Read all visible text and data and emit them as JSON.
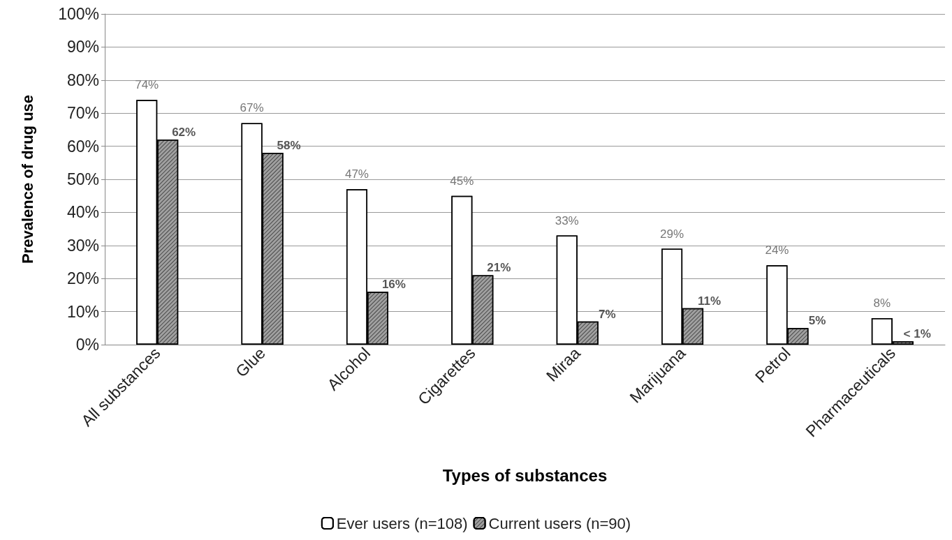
{
  "chart_data": {
    "type": "bar",
    "xlabel": "Types of substances",
    "ylabel": "Prevalence of drug use",
    "categories": [
      "All substances",
      "Glue",
      "Alcohol",
      "Cigarettes",
      "Miraa",
      "Marijuana",
      "Petrol",
      "Pharmaceuticals"
    ],
    "series": [
      {
        "name": "Ever users (n=108)",
        "color": "#ffffff",
        "values": [
          74,
          67,
          47,
          45,
          33,
          29,
          24,
          8
        ],
        "value_labels": [
          "74%",
          "67%",
          "47%",
          "45%",
          "33%",
          "29%",
          "24%",
          "8%"
        ]
      },
      {
        "name": "Current users (n=90)",
        "color": "#a0a0a0",
        "values": [
          62,
          58,
          16,
          21,
          7,
          11,
          5,
          1
        ],
        "value_labels": [
          "62%",
          "58%",
          "16%",
          "21%",
          "7%",
          "11%",
          "5%",
          "< 1%"
        ]
      }
    ],
    "ylim": [
      0,
      100
    ],
    "yticks": [
      {
        "value": 0,
        "label": "0%"
      },
      {
        "value": 10,
        "label": "10%"
      },
      {
        "value": 20,
        "label": "20%"
      },
      {
        "value": 30,
        "label": "30%"
      },
      {
        "value": 40,
        "label": "40%"
      },
      {
        "value": 50,
        "label": "50%"
      },
      {
        "value": 60,
        "label": "60%"
      },
      {
        "value": 70,
        "label": "70%"
      },
      {
        "value": 80,
        "label": "80%"
      },
      {
        "value": 90,
        "label": "90%"
      },
      {
        "value": 100,
        "label": "100%"
      }
    ],
    "grid": "y",
    "legend": "bottom"
  }
}
